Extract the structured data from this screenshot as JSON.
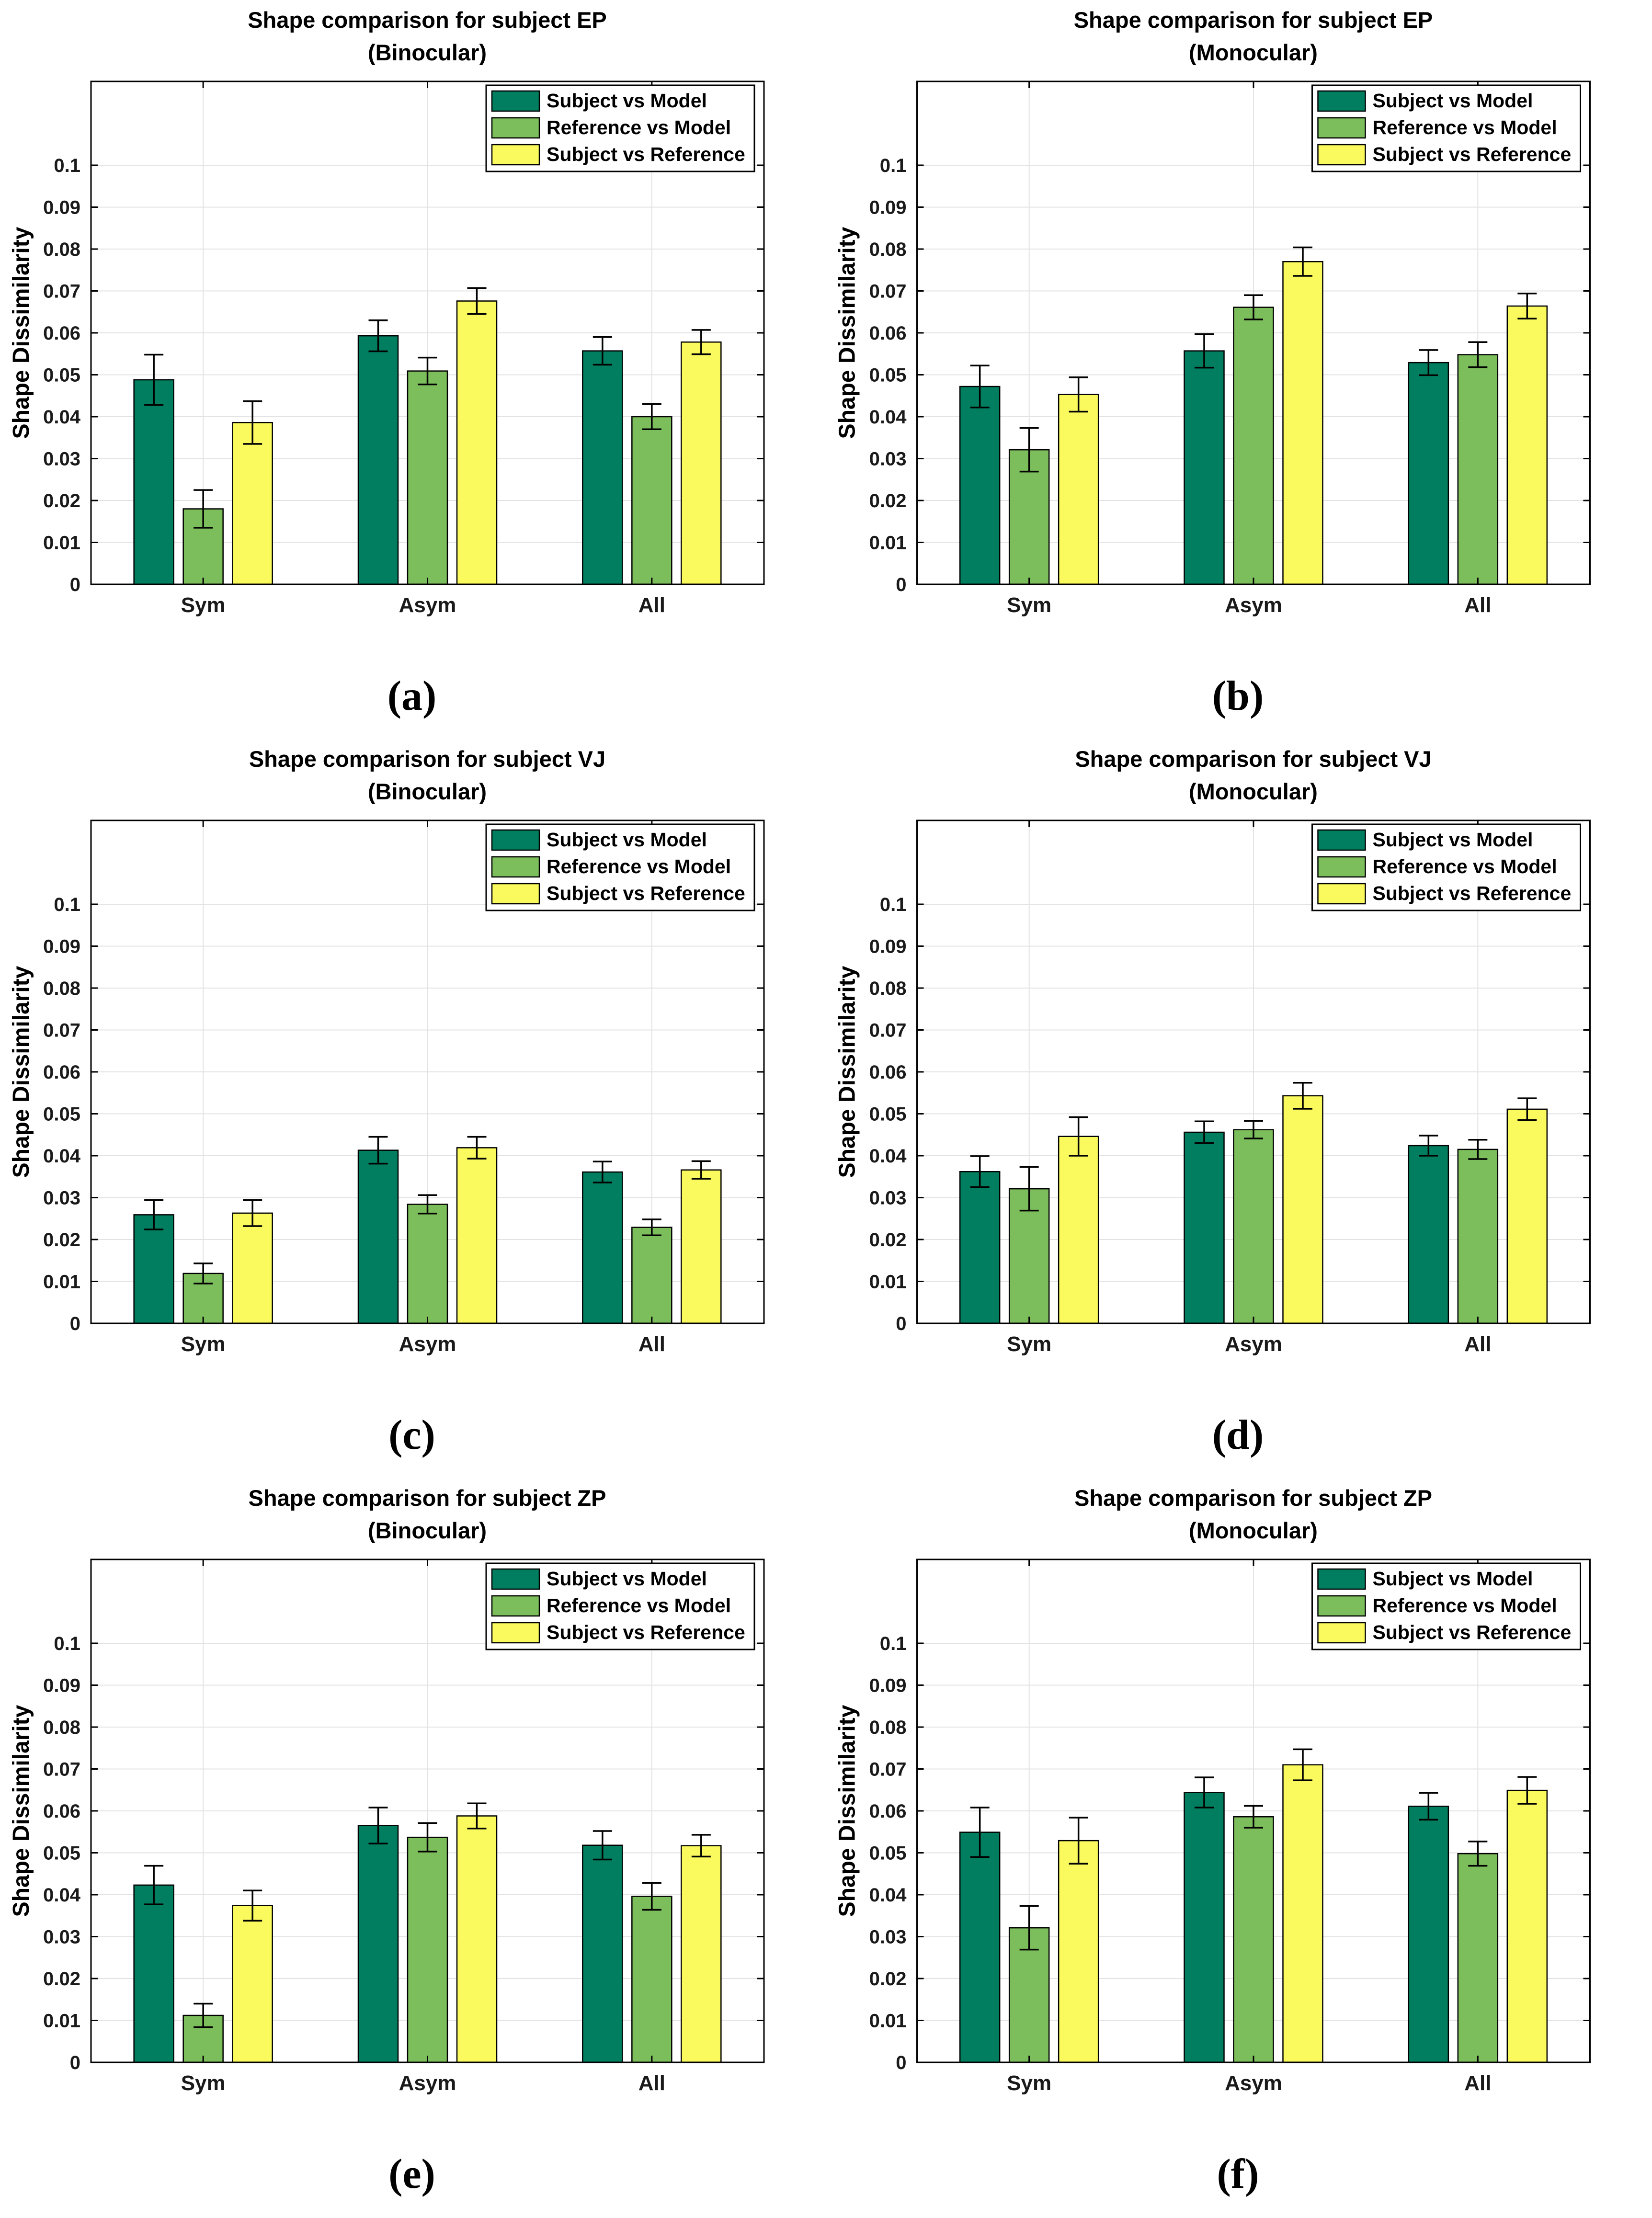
{
  "figure": {
    "ylabel": "Shape Dissimilarity",
    "categories": [
      "Sym",
      "Asym",
      "All"
    ],
    "ytick_values": [
      0,
      0.01,
      0.02,
      0.03,
      0.04,
      0.05,
      0.06,
      0.07,
      0.08,
      0.09,
      0.1
    ],
    "ytick_labels": [
      "0",
      "0.01",
      "0.02",
      "0.03",
      "0.04",
      "0.05",
      "0.06",
      "0.07",
      "0.08",
      "0.09",
      "0.1"
    ],
    "ylim": [
      0,
      0.12
    ],
    "grid": true,
    "legend_position": "top-right",
    "legend_labels": [
      "Subject vs Model",
      "Reference vs Model",
      "Subject vs Reference"
    ],
    "colors": {
      "subject_vs_model": "#007e5f",
      "reference_vs_model": "#7dbe5c",
      "subject_vs_reference": "#fafa5f",
      "bar_edge": "#000000",
      "grid": "#e3e3e3"
    }
  },
  "chart_data": [
    {
      "type": "bar",
      "panel_label": "(a)",
      "title": "Shape comparison for subject EP",
      "subtitle": "(Binocular)",
      "categories": [
        "Sym",
        "Asym",
        "All"
      ],
      "ylabel": "Shape Dissimilarity",
      "ylim": [
        0,
        0.12
      ],
      "legend_position": "top-right",
      "series": [
        {
          "name": "Subject vs Model",
          "color": "#007e5f",
          "values": [
            0.0488,
            0.0593,
            0.0557
          ],
          "errors": [
            0.006,
            0.0037,
            0.0033
          ]
        },
        {
          "name": "Reference vs Model",
          "color": "#7dbe5c",
          "values": [
            0.018,
            0.0509,
            0.04
          ],
          "errors": [
            0.0045,
            0.0032,
            0.003
          ]
        },
        {
          "name": "Subject vs Reference",
          "color": "#fafa5f",
          "values": [
            0.0386,
            0.0676,
            0.0578
          ],
          "errors": [
            0.0051,
            0.0031,
            0.0029
          ]
        }
      ]
    },
    {
      "type": "bar",
      "panel_label": "(b)",
      "title": "Shape comparison for subject EP",
      "subtitle": "(Monocular)",
      "categories": [
        "Sym",
        "Asym",
        "All"
      ],
      "ylabel": "Shape Dissimilarity",
      "ylim": [
        0,
        0.12
      ],
      "legend_position": "top-right",
      "series": [
        {
          "name": "Subject vs Model",
          "color": "#007e5f",
          "values": [
            0.0472,
            0.0557,
            0.0529
          ],
          "errors": [
            0.005,
            0.004,
            0.003
          ]
        },
        {
          "name": "Reference vs Model",
          "color": "#7dbe5c",
          "values": [
            0.0321,
            0.0661,
            0.0548
          ],
          "errors": [
            0.0052,
            0.0029,
            0.003
          ]
        },
        {
          "name": "Subject vs Reference",
          "color": "#fafa5f",
          "values": [
            0.0453,
            0.077,
            0.0664
          ],
          "errors": [
            0.0041,
            0.0034,
            0.003
          ]
        }
      ]
    },
    {
      "type": "bar",
      "panel_label": "(c)",
      "title": "Shape comparison for subject VJ",
      "subtitle": "(Binocular)",
      "categories": [
        "Sym",
        "Asym",
        "All"
      ],
      "ylabel": "Shape Dissimilarity",
      "ylim": [
        0,
        0.12
      ],
      "legend_position": "top-right",
      "series": [
        {
          "name": "Subject vs Model",
          "color": "#007e5f",
          "values": [
            0.0259,
            0.0413,
            0.0361
          ],
          "errors": [
            0.0035,
            0.0032,
            0.0025
          ]
        },
        {
          "name": "Reference vs Model",
          "color": "#7dbe5c",
          "values": [
            0.0119,
            0.0284,
            0.0229
          ],
          "errors": [
            0.0024,
            0.0022,
            0.0019
          ]
        },
        {
          "name": "Subject vs Reference",
          "color": "#fafa5f",
          "values": [
            0.0263,
            0.0419,
            0.0366
          ],
          "errors": [
            0.0031,
            0.0026,
            0.0021
          ]
        }
      ]
    },
    {
      "type": "bar",
      "panel_label": "(d)",
      "title": "Shape comparison for subject VJ",
      "subtitle": "(Monocular)",
      "categories": [
        "Sym",
        "Asym",
        "All"
      ],
      "ylabel": "Shape Dissimilarity",
      "ylim": [
        0,
        0.12
      ],
      "legend_position": "top-right",
      "series": [
        {
          "name": "Subject vs Model",
          "color": "#007e5f",
          "values": [
            0.0362,
            0.0456,
            0.0424
          ],
          "errors": [
            0.0037,
            0.0026,
            0.0024
          ]
        },
        {
          "name": "Reference vs Model",
          "color": "#7dbe5c",
          "values": [
            0.0321,
            0.0462,
            0.0415
          ],
          "errors": [
            0.0052,
            0.0021,
            0.0023
          ]
        },
        {
          "name": "Subject vs Reference",
          "color": "#fafa5f",
          "values": [
            0.0446,
            0.0543,
            0.0511
          ],
          "errors": [
            0.0046,
            0.0031,
            0.0026
          ]
        }
      ]
    },
    {
      "type": "bar",
      "panel_label": "(e)",
      "title": "Shape comparison for subject ZP",
      "subtitle": "(Binocular)",
      "categories": [
        "Sym",
        "Asym",
        "All"
      ],
      "ylabel": "Shape Dissimilarity",
      "ylim": [
        0,
        0.12
      ],
      "legend_position": "top-right",
      "series": [
        {
          "name": "Subject vs Model",
          "color": "#007e5f",
          "values": [
            0.0423,
            0.0565,
            0.0518
          ],
          "errors": [
            0.0046,
            0.0043,
            0.0034
          ]
        },
        {
          "name": "Reference vs Model",
          "color": "#7dbe5c",
          "values": [
            0.0112,
            0.0537,
            0.0396
          ],
          "errors": [
            0.0028,
            0.0034,
            0.0032
          ]
        },
        {
          "name": "Subject vs Reference",
          "color": "#fafa5f",
          "values": [
            0.0374,
            0.0588,
            0.0517
          ],
          "errors": [
            0.0036,
            0.003,
            0.0026
          ]
        }
      ]
    },
    {
      "type": "bar",
      "panel_label": "(f)",
      "title": "Shape comparison for subject ZP",
      "subtitle": "(Monocular)",
      "categories": [
        "Sym",
        "Asym",
        "All"
      ],
      "ylabel": "Shape Dissimilarity",
      "ylim": [
        0,
        0.12
      ],
      "legend_position": "top-right",
      "series": [
        {
          "name": "Subject vs Model",
          "color": "#007e5f",
          "values": [
            0.0549,
            0.0644,
            0.0611
          ],
          "errors": [
            0.0059,
            0.0036,
            0.0032
          ]
        },
        {
          "name": "Reference vs Model",
          "color": "#7dbe5c",
          "values": [
            0.0321,
            0.0586,
            0.0498
          ],
          "errors": [
            0.0052,
            0.0026,
            0.0029
          ]
        },
        {
          "name": "Subject vs Reference",
          "color": "#fafa5f",
          "values": [
            0.0529,
            0.071,
            0.0649
          ],
          "errors": [
            0.0055,
            0.0037,
            0.0032
          ]
        }
      ]
    }
  ]
}
